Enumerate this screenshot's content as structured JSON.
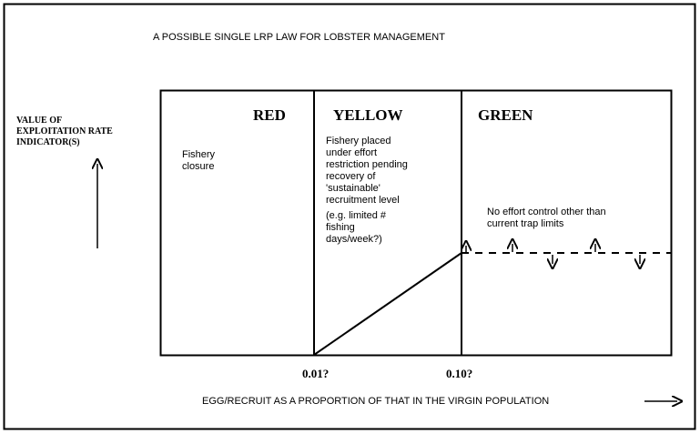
{
  "title": "A POSSIBLE SINGLE LRP LAW FOR LOBSTER MANAGEMENT",
  "y_axis_label": [
    "VALUE OF",
    "EXPLOITATION RATE",
    "INDICATOR(S)"
  ],
  "x_axis_label": "EGG/RECRUIT AS A PROPORTION OF THAT IN THE VIRGIN POPULATION",
  "zones": [
    {
      "name": "RED",
      "description": [
        "Fishery",
        "closure"
      ]
    },
    {
      "name": "YELLOW",
      "description": [
        "Fishery placed",
        "under effort",
        "restriction pending",
        "recovery of",
        "'sustainable'",
        "recruitment level"
      ],
      "note": [
        "(e.g. limited #",
        "fishing",
        "days/week?)"
      ]
    },
    {
      "name": "GREEN",
      "description": [
        "No effort control other than",
        "current trap limits"
      ]
    }
  ],
  "thresholds": [
    "0.01?",
    "0.10?"
  ],
  "colors": {
    "line": "#000000",
    "background": "#ffffff"
  }
}
